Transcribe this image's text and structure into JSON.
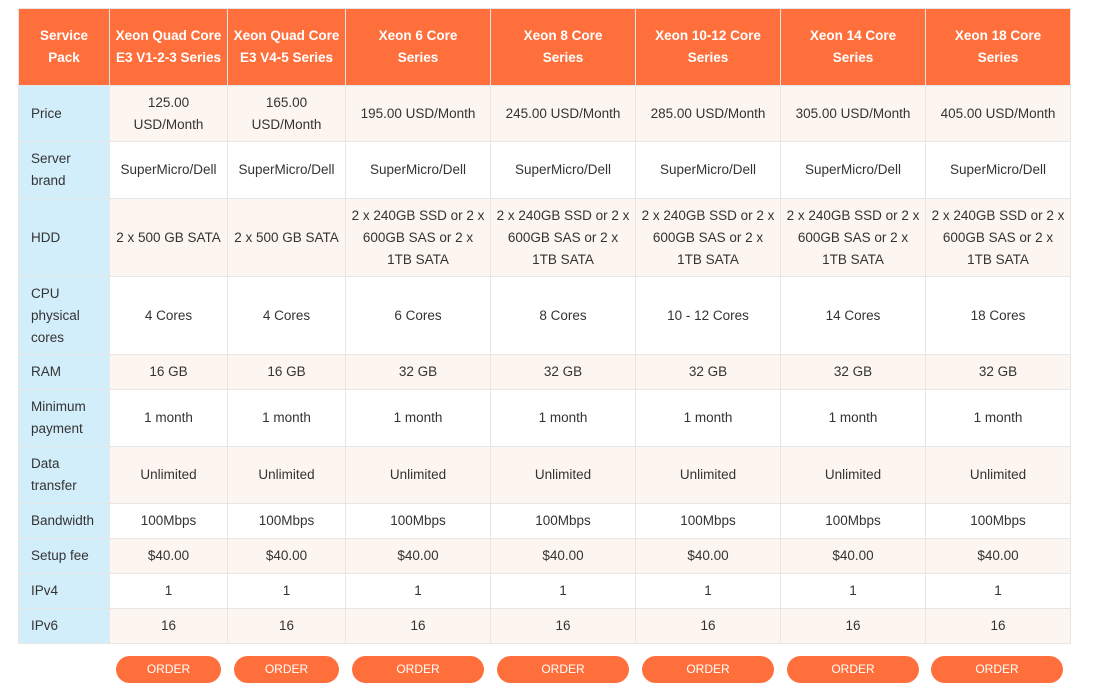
{
  "header": {
    "corner": "Service Pack",
    "plans": [
      "Xeon Quad Core E3 V1-2-3 Series",
      "Xeon Quad Core E3 V4-5 Series",
      "Xeon 6 Core Series",
      "Xeon 8 Core Series",
      "Xeon 10-12 Core Series",
      "Xeon 14 Core Series",
      "Xeon 18 Core Series"
    ]
  },
  "rows": [
    {
      "label": "Price",
      "values": [
        "125.00 USD/Month",
        "165.00 USD/Month",
        "195.00 USD/Month",
        "245.00 USD/Month",
        "285.00 USD/Month",
        "305.00 USD/Month",
        "405.00 USD/Month"
      ]
    },
    {
      "label": "Server brand",
      "values": [
        "SuperMicro/Dell",
        "SuperMicro/Dell",
        "SuperMicro/Dell",
        "SuperMicro/Dell",
        "SuperMicro/Dell",
        "SuperMicro/Dell",
        "SuperMicro/Dell"
      ]
    },
    {
      "label": "HDD",
      "values": [
        "2 x 500 GB SATA",
        "2 x 500 GB SATA",
        "2 x 240GB SSD or 2 x 600GB SAS or 2 x 1TB SATA",
        "2 x 240GB SSD or 2 x 600GB SAS or 2 x 1TB SATA",
        "2 x 240GB SSD or 2 x 600GB SAS or 2 x 1TB SATA",
        "2 x 240GB SSD or 2 x 600GB SAS or 2 x 1TB SATA",
        "2 x 240GB SSD or 2 x 600GB SAS or 2 x 1TB SATA"
      ]
    },
    {
      "label": "CPU physical cores",
      "values": [
        "4 Cores",
        "4 Cores",
        "6 Cores",
        "8 Cores",
        "10 - 12 Cores",
        "14 Cores",
        "18 Cores"
      ]
    },
    {
      "label": "RAM",
      "values": [
        "16 GB",
        "16 GB",
        "32 GB",
        "32 GB",
        "32 GB",
        "32 GB",
        "32 GB"
      ]
    },
    {
      "label": "Minimum payment",
      "values": [
        "1 month",
        "1 month",
        "1 month",
        "1 month",
        "1 month",
        "1 month",
        "1 month"
      ]
    },
    {
      "label": "Data transfer",
      "values": [
        "Unlimited",
        "Unlimited",
        "Unlimited",
        "Unlimited",
        "Unlimited",
        "Unlimited",
        "Unlimited"
      ]
    },
    {
      "label": "Bandwidth",
      "values": [
        "100Mbps",
        "100Mbps",
        "100Mbps",
        "100Mbps",
        "100Mbps",
        "100Mbps",
        "100Mbps"
      ]
    },
    {
      "label": "Setup fee",
      "values": [
        "$40.00",
        "$40.00",
        "$40.00",
        "$40.00",
        "$40.00",
        "$40.00",
        "$40.00"
      ]
    },
    {
      "label": "IPv4",
      "values": [
        "1",
        "1",
        "1",
        "1",
        "1",
        "1",
        "1"
      ]
    },
    {
      "label": "IPv6",
      "values": [
        "16",
        "16",
        "16",
        "16",
        "16",
        "16",
        "16"
      ]
    }
  ],
  "order_label": "ORDER",
  "colors": {
    "accent": "#ff6f3c",
    "label_column": "#d3eefb",
    "row_tint": "#fdf6f0"
  }
}
